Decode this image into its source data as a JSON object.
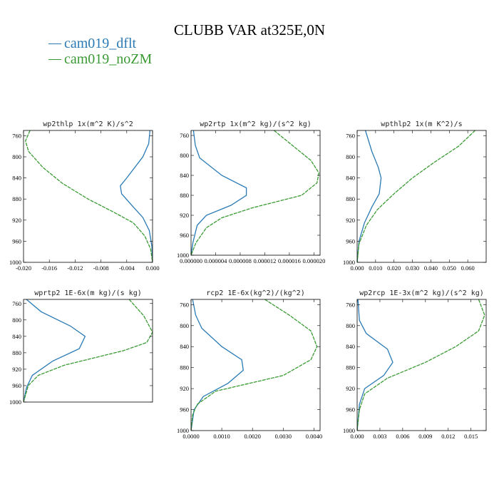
{
  "colors": {
    "dflt": "#2a7ab4",
    "noZM": "#3a9a34"
  },
  "title": "CLUBB VAR at325E,0N",
  "legend": [
    {
      "name": "cam019_dflt",
      "color": "#2a7ab4"
    },
    {
      "name": "cam019_noZM",
      "color": "#3a9a34"
    }
  ],
  "chart_data": [
    {
      "type": "line",
      "title": "wp2thlp  1x(m^2 K)/s^2",
      "xlim": [
        -0.02,
        0.0
      ],
      "ylim": [
        1000,
        750
      ],
      "xticks": [
        "-0.020",
        "-0.016",
        "-0.012",
        "-0.008",
        "-0.004",
        "0.000"
      ],
      "xtick_values": [
        -0.02,
        -0.016,
        -0.012,
        -0.008,
        -0.004,
        0.0
      ],
      "yticks": [
        "760",
        "800",
        "840",
        "880",
        "920",
        "960",
        "1000"
      ],
      "ytick_values": [
        760,
        800,
        840,
        880,
        920,
        960,
        1000
      ],
      "series": [
        {
          "name": "cam019_dflt",
          "x": [
            -0.0004,
            -0.0006,
            -0.0015,
            -0.004,
            -0.005,
            -0.0048,
            -0.003,
            -0.0015,
            -0.0005,
            -0.0001,
            0.0
          ],
          "y": [
            750,
            775,
            800,
            840,
            855,
            870,
            895,
            915,
            940,
            970,
            1000
          ]
        },
        {
          "name": "cam019_noZM",
          "x": [
            -0.019,
            -0.0197,
            -0.0192,
            -0.017,
            -0.014,
            -0.01,
            -0.006,
            -0.003,
            -0.0012,
            -0.0003,
            0.0
          ],
          "y": [
            750,
            770,
            790,
            820,
            850,
            880,
            905,
            925,
            950,
            975,
            1000
          ]
        }
      ]
    },
    {
      "type": "line",
      "title": "wp2rtp  1x(m^2 kg)/(s^2 kg)",
      "xlim": [
        0.0,
        2.1e-05
      ],
      "ylim": [
        1000,
        750
      ],
      "xticks": [
        "0.000000",
        "0.000004",
        "0.000008",
        "0.000012",
        "0.000016",
        "0.000020"
      ],
      "xtick_values": [
        0.0,
        4e-06,
        8e-06,
        1.2e-05,
        1.6e-05,
        2e-05
      ],
      "yticks": [
        "760",
        "800",
        "840",
        "880",
        "920",
        "960",
        "1000"
      ],
      "ytick_values": [
        760,
        800,
        840,
        880,
        920,
        960,
        1000
      ],
      "series": [
        {
          "name": "cam019_dflt",
          "x": [
            4e-07,
            7e-07,
            1.4e-06,
            5e-06,
            9e-06,
            9e-06,
            6.5e-06,
            2.5e-06,
            1e-06,
            3e-07,
            0.0
          ],
          "y": [
            750,
            780,
            805,
            840,
            865,
            880,
            900,
            920,
            940,
            975,
            1000
          ]
        },
        {
          "name": "cam019_noZM",
          "x": [
            1.35e-05,
            1.65e-05,
            1.95e-05,
            2.08e-05,
            2.05e-05,
            1.8e-05,
            1e-05,
            5e-06,
            2.5e-06,
            8e-07,
            0.0
          ],
          "y": [
            750,
            780,
            810,
            835,
            855,
            880,
            905,
            925,
            945,
            975,
            1000
          ]
        }
      ]
    },
    {
      "type": "line",
      "title": "wpthlp2  1x(m K^2)/s",
      "xlim": [
        0.0,
        0.07
      ],
      "ylim": [
        1000,
        750
      ],
      "xticks": [
        "0.000",
        "0.010",
        "0.020",
        "0.030",
        "0.040",
        "0.050",
        "0.060"
      ],
      "xtick_values": [
        0.0,
        0.01,
        0.02,
        0.03,
        0.04,
        0.05,
        0.06
      ],
      "yticks": [
        "760",
        "800",
        "840",
        "880",
        "920",
        "960",
        "1000"
      ],
      "ytick_values": [
        760,
        800,
        840,
        880,
        920,
        960,
        1000
      ],
      "series": [
        {
          "name": "cam019_dflt",
          "x": [
            0.0045,
            0.008,
            0.0115,
            0.013,
            0.012,
            0.008,
            0.004,
            0.001,
            0.0
          ],
          "y": [
            750,
            790,
            820,
            840,
            870,
            895,
            925,
            960,
            1000
          ]
        },
        {
          "name": "cam019_noZM",
          "x": [
            0.064,
            0.055,
            0.042,
            0.03,
            0.02,
            0.011,
            0.005,
            0.001,
            0.0
          ],
          "y": [
            750,
            780,
            810,
            840,
            870,
            900,
            930,
            965,
            1000
          ]
        }
      ]
    },
    {
      "type": "line",
      "title": "wprtp2  1E-6x(m kg)/(s kg)",
      "xlim": [
        0.0,
        0.00022
      ],
      "ylim": [
        1000,
        750
      ],
      "xticks": [],
      "xtick_values": [],
      "yticks": [
        "760",
        "800",
        "840",
        "880",
        "920",
        "960",
        "1000"
      ],
      "ytick_values": [
        760,
        800,
        840,
        880,
        920,
        960,
        1000
      ],
      "series": [
        {
          "name": "cam019_dflt",
          "x": [
            5e-06,
            3e-05,
            8e-05,
            0.000105,
            9.5e-05,
            5e-05,
            1.5e-05,
            5e-06,
            0.0
          ],
          "y": [
            750,
            780,
            815,
            840,
            870,
            900,
            935,
            965,
            1000
          ]
        },
        {
          "name": "cam019_noZM",
          "x": [
            0.00018,
            0.000205,
            0.00022,
            0.00021,
            0.00017,
            7e-05,
            2.5e-05,
            8e-06,
            0.0
          ],
          "y": [
            750,
            790,
            830,
            855,
            875,
            910,
            935,
            960,
            1000
          ]
        }
      ]
    },
    {
      "type": "line",
      "title": "rcp2  1E-6x(kg^2)/(kg^2)",
      "xlim": [
        0.0,
        0.0042
      ],
      "ylim": [
        1000,
        750
      ],
      "xticks": [
        "0.0000",
        "0.0010",
        "0.0020",
        "0.0030",
        "0.0040"
      ],
      "xtick_values": [
        0.0,
        0.001,
        0.002,
        0.003,
        0.004
      ],
      "yticks": [
        "760",
        "800",
        "840",
        "880",
        "920",
        "960",
        "1000"
      ],
      "ytick_values": [
        760,
        800,
        840,
        880,
        920,
        960,
        1000
      ],
      "series": [
        {
          "name": "cam019_dflt",
          "x": [
            5e-05,
            0.00015,
            0.00035,
            0.001,
            0.00165,
            0.0017,
            0.0012,
            0.0004,
            0.0001,
            0.0
          ],
          "y": [
            750,
            780,
            805,
            840,
            865,
            885,
            910,
            935,
            960,
            1000
          ]
        },
        {
          "name": "cam019_noZM",
          "x": [
            0.0024,
            0.0032,
            0.0039,
            0.0041,
            0.0039,
            0.003,
            0.0008,
            0.0002,
            5e-05,
            0.0
          ],
          "y": [
            750,
            780,
            810,
            840,
            865,
            895,
            925,
            950,
            970,
            1000
          ]
        }
      ]
    },
    {
      "type": "line",
      "title": "wp2rcp  1E-3x(m^2 kg)/(s^2 kg)",
      "xlim": [
        0.0,
        0.017
      ],
      "ylim": [
        1000,
        750
      ],
      "xticks": [
        "0.000",
        "0.003",
        "0.006",
        "0.009",
        "0.012",
        "0.015"
      ],
      "xtick_values": [
        0.0,
        0.003,
        0.006,
        0.009,
        0.012,
        0.015
      ],
      "yticks": [
        "760",
        "800",
        "840",
        "880",
        "920",
        "960",
        "1000"
      ],
      "ytick_values": [
        760,
        800,
        840,
        880,
        920,
        960,
        1000
      ],
      "series": [
        {
          "name": "cam019_dflt",
          "x": [
            0.0001,
            0.0003,
            0.0012,
            0.004,
            0.0047,
            0.0035,
            0.001,
            0.0003,
            0.0
          ],
          "y": [
            750,
            790,
            815,
            845,
            870,
            895,
            920,
            950,
            1000
          ]
        },
        {
          "name": "cam019_noZM",
          "x": [
            0.016,
            0.0168,
            0.016,
            0.013,
            0.009,
            0.004,
            0.001,
            0.0003,
            0.0
          ],
          "y": [
            750,
            780,
            810,
            840,
            870,
            900,
            930,
            960,
            1000
          ]
        }
      ]
    }
  ]
}
